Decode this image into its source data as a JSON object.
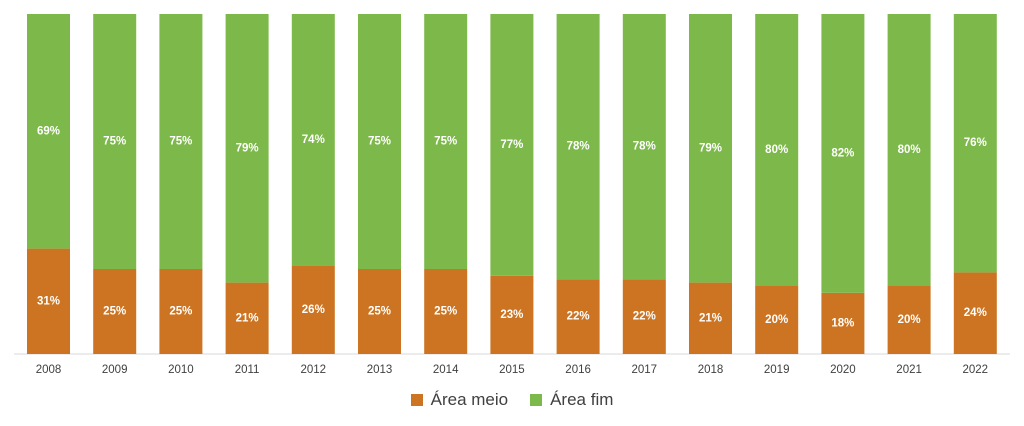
{
  "chart_data": {
    "type": "bar",
    "stacked": true,
    "categories": [
      "2008",
      "2009",
      "2010",
      "2011",
      "2012",
      "2013",
      "2014",
      "2015",
      "2016",
      "2017",
      "2018",
      "2019",
      "2020",
      "2021",
      "2022"
    ],
    "series": [
      {
        "name": "Área meio",
        "color": "#CC7422",
        "values": [
          31,
          25,
          25,
          21,
          26,
          25,
          25,
          23,
          22,
          22,
          21,
          20,
          18,
          20,
          24
        ],
        "labels": [
          "31%",
          "25%",
          "25%",
          "21%",
          "26%",
          "25%",
          "25%",
          "23%",
          "22%",
          "22%",
          "21%",
          "20%",
          "18%",
          "20%",
          "24%"
        ]
      },
      {
        "name": "Área fim",
        "color": "#7DB84A",
        "values": [
          69,
          75,
          75,
          79,
          74,
          75,
          75,
          77,
          78,
          78,
          79,
          80,
          82,
          80,
          76
        ],
        "labels": [
          "69%",
          "75%",
          "75%",
          "79%",
          "74%",
          "75%",
          "75%",
          "77%",
          "78%",
          "78%",
          "79%",
          "80%",
          "82%",
          "80%",
          "76%"
        ]
      }
    ],
    "ylim": [
      0,
      100
    ],
    "grid": false,
    "legend": "bottom"
  }
}
